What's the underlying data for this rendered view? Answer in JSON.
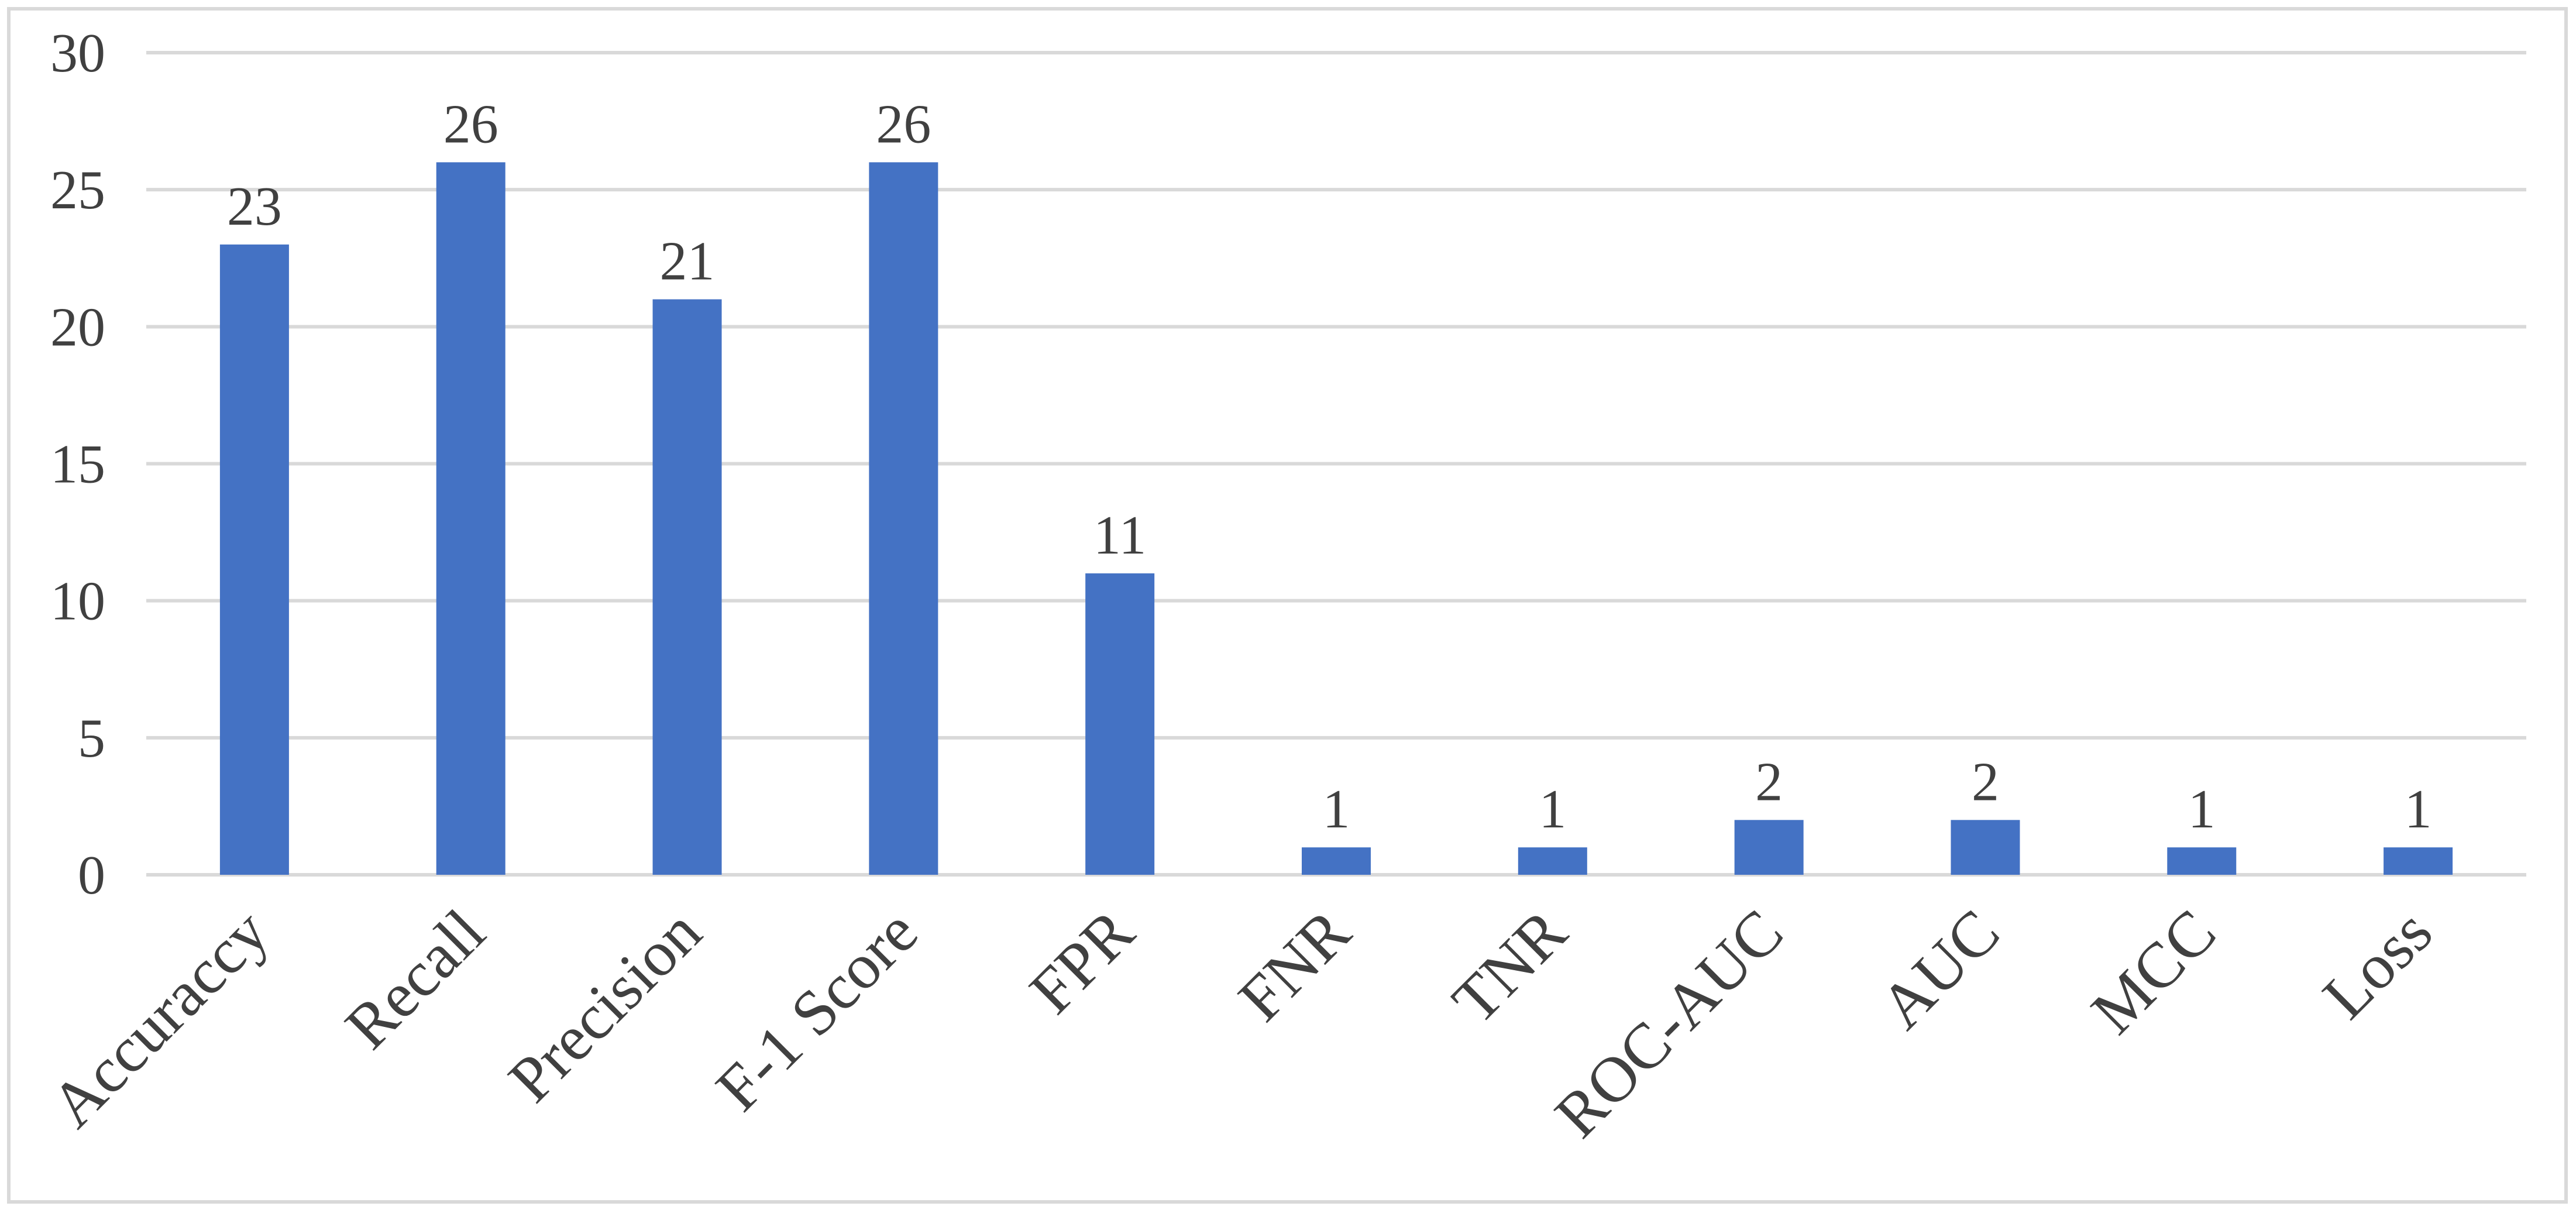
{
  "chart_data": {
    "type": "bar",
    "title": "",
    "xlabel": "",
    "ylabel": "",
    "categories": [
      "Accuraccy",
      "Recall",
      "Precision",
      "F-1 Score",
      "FPR",
      "FNR",
      "TNR",
      "ROC-AUC",
      "AUC",
      "MCC",
      "Loss"
    ],
    "values": [
      23,
      26,
      21,
      26,
      11,
      1,
      1,
      2,
      2,
      1,
      1
    ],
    "ylim": [
      0,
      30
    ],
    "yticks": [
      0,
      5,
      10,
      15,
      20,
      25,
      30
    ],
    "grid": true,
    "legend": "none",
    "data_labels": true,
    "bar_color": "#4472c4",
    "grid_color": "#d9d9d9",
    "text_color": "#404040"
  }
}
